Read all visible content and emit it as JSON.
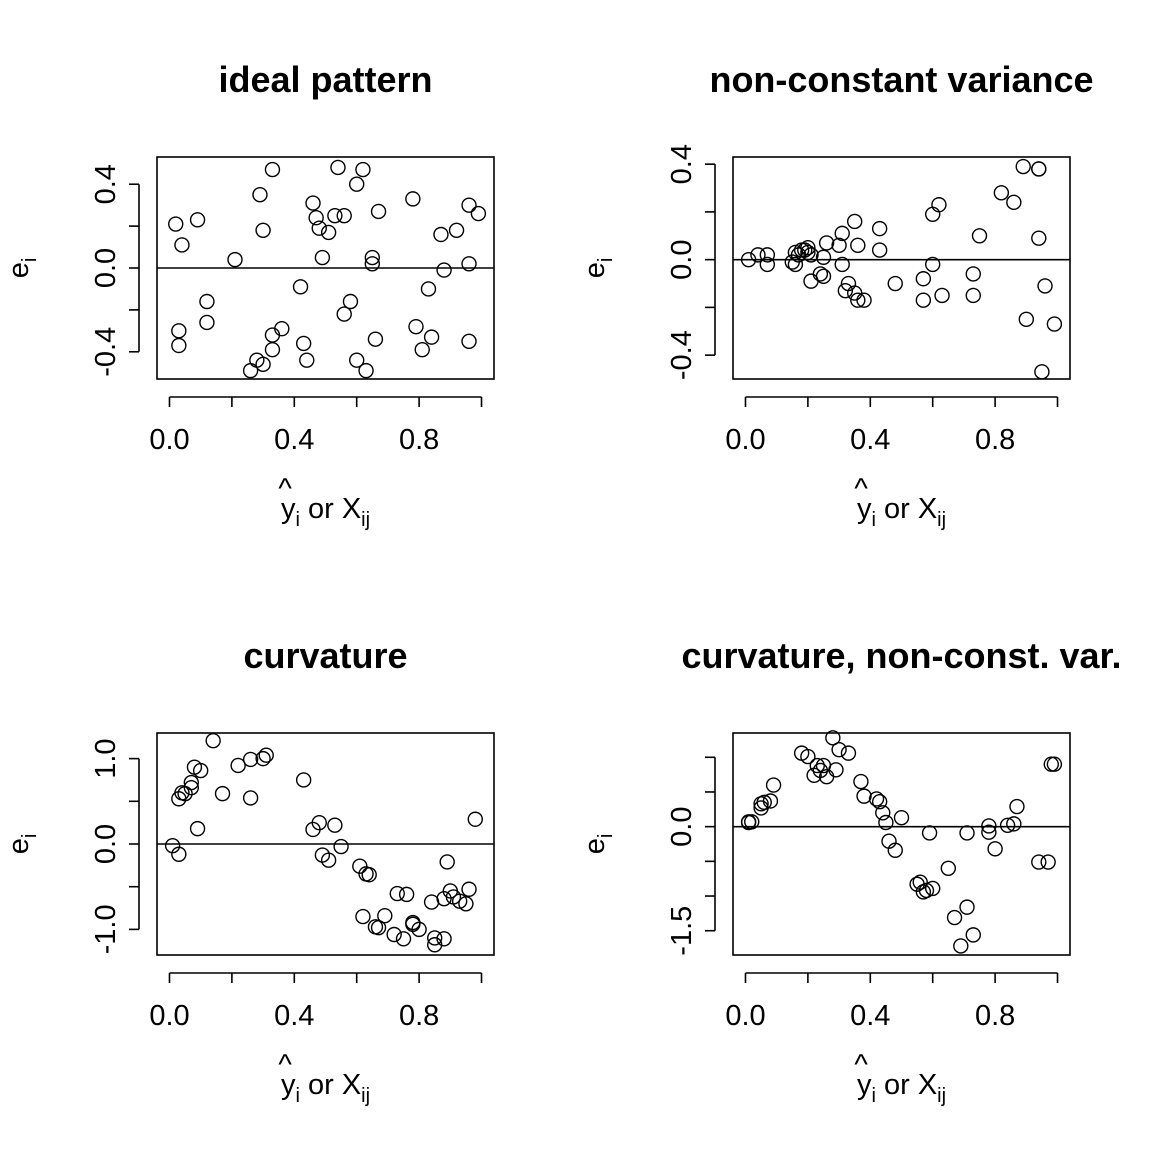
{
  "chart_data": [
    {
      "type": "scatter",
      "title": "ideal pattern",
      "xlabel": {
        "hat": "^",
        "base": "y",
        "base_sub": "i",
        "connector": " or ",
        "var": "X",
        "var_sub": "ij"
      },
      "ylabel": {
        "base": "e",
        "sub": "i"
      },
      "xlim": [
        -0.04,
        1.04
      ],
      "ylim": [
        -0.53,
        0.53
      ],
      "xticks": [
        0.0,
        0.4,
        0.8
      ],
      "xtick_labels": [
        "0.0",
        "0.4",
        "0.8"
      ],
      "xtick_marks": [
        0.0,
        0.2,
        0.4,
        0.6,
        0.8,
        1.0
      ],
      "yticks": [
        -0.4,
        0.0,
        0.4
      ],
      "ytick_labels": [
        "-0.4",
        "0.0",
        "0.4"
      ],
      "ytick_marks": [
        -0.4,
        -0.2,
        0.0,
        0.2,
        0.4
      ],
      "reference_line": 0,
      "points": [
        [
          0.02,
          0.21
        ],
        [
          0.04,
          0.11
        ],
        [
          0.03,
          -0.3
        ],
        [
          0.03,
          -0.37
        ],
        [
          0.09,
          0.23
        ],
        [
          0.12,
          -0.16
        ],
        [
          0.12,
          -0.26
        ],
        [
          0.21,
          0.04
        ],
        [
          0.26,
          -0.49
        ],
        [
          0.28,
          -0.44
        ],
        [
          0.29,
          0.35
        ],
        [
          0.3,
          -0.46
        ],
        [
          0.3,
          0.18
        ],
        [
          0.33,
          0.47
        ],
        [
          0.33,
          -0.32
        ],
        [
          0.33,
          -0.39
        ],
        [
          0.36,
          -0.29
        ],
        [
          0.42,
          -0.09
        ],
        [
          0.43,
          -0.36
        ],
        [
          0.44,
          -0.44
        ],
        [
          0.46,
          0.31
        ],
        [
          0.47,
          0.24
        ],
        [
          0.48,
          0.19
        ],
        [
          0.49,
          0.05
        ],
        [
          0.51,
          0.17
        ],
        [
          0.53,
          0.25
        ],
        [
          0.54,
          0.48
        ],
        [
          0.56,
          0.25
        ],
        [
          0.56,
          -0.22
        ],
        [
          0.58,
          -0.16
        ],
        [
          0.6,
          -0.44
        ],
        [
          0.6,
          0.4
        ],
        [
          0.62,
          0.47
        ],
        [
          0.63,
          -0.49
        ],
        [
          0.65,
          0.05
        ],
        [
          0.65,
          0.02
        ],
        [
          0.66,
          -0.34
        ],
        [
          0.67,
          0.27
        ],
        [
          0.78,
          0.33
        ],
        [
          0.79,
          -0.28
        ],
        [
          0.81,
          -0.39
        ],
        [
          0.83,
          -0.1
        ],
        [
          0.84,
          -0.33
        ],
        [
          0.87,
          0.16
        ],
        [
          0.88,
          -0.01
        ],
        [
          0.92,
          0.18
        ],
        [
          0.96,
          0.02
        ],
        [
          0.96,
          0.3
        ],
        [
          0.96,
          -0.35
        ],
        [
          0.99,
          0.26
        ]
      ]
    },
    {
      "type": "scatter",
      "title": "non-constant variance",
      "xlabel": {
        "hat": "^",
        "base": "y",
        "base_sub": "i",
        "connector": " or ",
        "var": "X",
        "var_sub": "ij"
      },
      "ylabel": {
        "base": "e",
        "sub": "i"
      },
      "xlim": [
        -0.04,
        1.04
      ],
      "ylim": [
        -0.5,
        0.43
      ],
      "xticks": [
        0.0,
        0.4,
        0.8
      ],
      "xtick_labels": [
        "0.0",
        "0.4",
        "0.8"
      ],
      "xtick_marks": [
        0.0,
        0.2,
        0.4,
        0.6,
        0.8,
        1.0
      ],
      "yticks": [
        -0.4,
        0.0,
        0.4
      ],
      "ytick_labels": [
        "-0.4",
        "0.0",
        "0.4"
      ],
      "ytick_marks": [
        -0.4,
        -0.2,
        0.0,
        0.2,
        0.4
      ],
      "reference_line": 0,
      "points": [
        [
          0.01,
          0.0
        ],
        [
          0.04,
          0.02
        ],
        [
          0.07,
          0.02
        ],
        [
          0.07,
          -0.02
        ],
        [
          0.15,
          -0.01
        ],
        [
          0.16,
          0.03
        ],
        [
          0.16,
          -0.02
        ],
        [
          0.17,
          0.02
        ],
        [
          0.18,
          0.04
        ],
        [
          0.19,
          0.04
        ],
        [
          0.2,
          0.03
        ],
        [
          0.2,
          0.05
        ],
        [
          0.21,
          -0.09
        ],
        [
          0.21,
          0.02
        ],
        [
          0.24,
          -0.06
        ],
        [
          0.25,
          -0.07
        ],
        [
          0.25,
          0.01
        ],
        [
          0.26,
          0.07
        ],
        [
          0.3,
          0.06
        ],
        [
          0.31,
          0.11
        ],
        [
          0.31,
          -0.02
        ],
        [
          0.32,
          -0.13
        ],
        [
          0.33,
          -0.1
        ],
        [
          0.35,
          0.16
        ],
        [
          0.35,
          -0.14
        ],
        [
          0.36,
          0.06
        ],
        [
          0.36,
          -0.17
        ],
        [
          0.38,
          -0.17
        ],
        [
          0.43,
          0.13
        ],
        [
          0.43,
          0.04
        ],
        [
          0.48,
          -0.1
        ],
        [
          0.57,
          -0.08
        ],
        [
          0.57,
          -0.17
        ],
        [
          0.6,
          0.19
        ],
        [
          0.6,
          -0.02
        ],
        [
          0.62,
          0.23
        ],
        [
          0.63,
          -0.15
        ],
        [
          0.73,
          -0.06
        ],
        [
          0.73,
          -0.15
        ],
        [
          0.75,
          0.1
        ],
        [
          0.82,
          0.28
        ],
        [
          0.86,
          0.24
        ],
        [
          0.89,
          0.39
        ],
        [
          0.9,
          -0.25
        ],
        [
          0.94,
          0.38
        ],
        [
          0.94,
          0.38
        ],
        [
          0.94,
          0.09
        ],
        [
          0.95,
          -0.47
        ],
        [
          0.96,
          -0.11
        ],
        [
          0.99,
          -0.27
        ]
      ]
    },
    {
      "type": "scatter",
      "title": "curvature",
      "xlabel": {
        "hat": "^",
        "base": "y",
        "base_sub": "i",
        "connector": " or ",
        "var": "X",
        "var_sub": "ij"
      },
      "ylabel": {
        "base": "e",
        "sub": "i"
      },
      "xlim": [
        -0.04,
        1.04
      ],
      "ylim": [
        -1.3,
        1.3
      ],
      "xticks": [
        0.0,
        0.4,
        0.8
      ],
      "xtick_labels": [
        "0.0",
        "0.4",
        "0.8"
      ],
      "xtick_marks": [
        0.0,
        0.2,
        0.4,
        0.6,
        0.8,
        1.0
      ],
      "yticks": [
        -1.0,
        0.0,
        1.0
      ],
      "ytick_labels": [
        "-1.0",
        "0.0",
        "1.0"
      ],
      "ytick_marks": [
        -1.0,
        -0.5,
        0.0,
        0.5,
        1.0
      ],
      "reference_line": 0,
      "points": [
        [
          0.01,
          -0.02
        ],
        [
          0.03,
          -0.12
        ],
        [
          0.03,
          0.53
        ],
        [
          0.04,
          0.6
        ],
        [
          0.05,
          0.59
        ],
        [
          0.07,
          0.66
        ],
        [
          0.07,
          0.72
        ],
        [
          0.08,
          0.9
        ],
        [
          0.09,
          0.18
        ],
        [
          0.1,
          0.86
        ],
        [
          0.14,
          1.21
        ],
        [
          0.17,
          0.59
        ],
        [
          0.22,
          0.92
        ],
        [
          0.26,
          0.54
        ],
        [
          0.26,
          0.99
        ],
        [
          0.3,
          1.0
        ],
        [
          0.31,
          1.04
        ],
        [
          0.43,
          0.75
        ],
        [
          0.46,
          0.17
        ],
        [
          0.48,
          0.25
        ],
        [
          0.49,
          -0.13
        ],
        [
          0.51,
          -0.19
        ],
        [
          0.53,
          0.22
        ],
        [
          0.55,
          -0.03
        ],
        [
          0.61,
          -0.26
        ],
        [
          0.62,
          -0.85
        ],
        [
          0.63,
          -0.35
        ],
        [
          0.64,
          -0.36
        ],
        [
          0.66,
          -0.97
        ],
        [
          0.67,
          -0.98
        ],
        [
          0.69,
          -0.84
        ],
        [
          0.72,
          -1.06
        ],
        [
          0.73,
          -0.58
        ],
        [
          0.75,
          -1.11
        ],
        [
          0.76,
          -0.59
        ],
        [
          0.78,
          -0.92
        ],
        [
          0.8,
          -1.0
        ],
        [
          0.84,
          -0.68
        ],
        [
          0.85,
          -1.1
        ],
        [
          0.85,
          -1.18
        ],
        [
          0.88,
          -1.11
        ],
        [
          0.88,
          -0.64
        ],
        [
          0.89,
          -0.21
        ],
        [
          0.9,
          -0.55
        ],
        [
          0.91,
          -0.62
        ],
        [
          0.93,
          -0.67
        ],
        [
          0.95,
          -0.7
        ],
        [
          0.96,
          -0.53
        ],
        [
          0.98,
          0.29
        ],
        [
          0.78,
          -0.94
        ]
      ]
    },
    {
      "type": "scatter",
      "title": "curvature, non-const. var.",
      "xlabel": {
        "hat": "^",
        "base": "y",
        "base_sub": "i",
        "connector": " or ",
        "var": "X",
        "var_sub": "ij"
      },
      "ylabel": {
        "base": "e",
        "sub": "i"
      },
      "xlim": [
        -0.04,
        1.04
      ],
      "ylim": [
        -1.85,
        1.35
      ],
      "xticks": [
        0.0,
        0.4,
        0.8
      ],
      "xtick_labels": [
        "0.0",
        "0.4",
        "0.8"
      ],
      "xtick_marks": [
        0.0,
        0.2,
        0.4,
        0.6,
        0.8,
        1.0
      ],
      "yticks": [
        -1.5,
        0.0
      ],
      "ytick_labels": [
        "-1.5",
        "0.0"
      ],
      "ytick_marks": [
        -1.5,
        -1.0,
        -0.5,
        0.0,
        0.5,
        1.0
      ],
      "reference_line": 0,
      "points": [
        [
          0.01,
          0.06
        ],
        [
          0.01,
          0.07
        ],
        [
          0.02,
          0.07
        ],
        [
          0.05,
          0.27
        ],
        [
          0.05,
          0.33
        ],
        [
          0.06,
          0.35
        ],
        [
          0.08,
          0.37
        ],
        [
          0.09,
          0.6
        ],
        [
          0.18,
          1.06
        ],
        [
          0.2,
          1.01
        ],
        [
          0.22,
          0.74
        ],
        [
          0.23,
          0.88
        ],
        [
          0.24,
          0.81
        ],
        [
          0.25,
          0.88
        ],
        [
          0.26,
          0.72
        ],
        [
          0.28,
          1.28
        ],
        [
          0.29,
          0.82
        ],
        [
          0.3,
          1.11
        ],
        [
          0.33,
          1.06
        ],
        [
          0.37,
          0.65
        ],
        [
          0.38,
          0.44
        ],
        [
          0.42,
          0.4
        ],
        [
          0.43,
          0.36
        ],
        [
          0.44,
          0.2
        ],
        [
          0.45,
          0.06
        ],
        [
          0.46,
          -0.21
        ],
        [
          0.48,
          -0.34
        ],
        [
          0.5,
          0.13
        ],
        [
          0.55,
          -0.83
        ],
        [
          0.56,
          -0.8
        ],
        [
          0.58,
          -0.92
        ],
        [
          0.59,
          -0.09
        ],
        [
          0.6,
          -0.89
        ],
        [
          0.65,
          -0.6
        ],
        [
          0.67,
          -1.31
        ],
        [
          0.69,
          -1.72
        ],
        [
          0.71,
          -1.16
        ],
        [
          0.71,
          -0.09
        ],
        [
          0.73,
          -1.56
        ],
        [
          0.78,
          0.01
        ],
        [
          0.78,
          -0.08
        ],
        [
          0.8,
          -0.32
        ],
        [
          0.84,
          0.02
        ],
        [
          0.86,
          0.04
        ],
        [
          0.87,
          0.29
        ],
        [
          0.97,
          -0.51
        ],
        [
          0.99,
          0.9
        ],
        [
          0.57,
          -0.94
        ],
        [
          0.94,
          -0.51
        ],
        [
          0.98,
          0.9
        ]
      ]
    }
  ]
}
